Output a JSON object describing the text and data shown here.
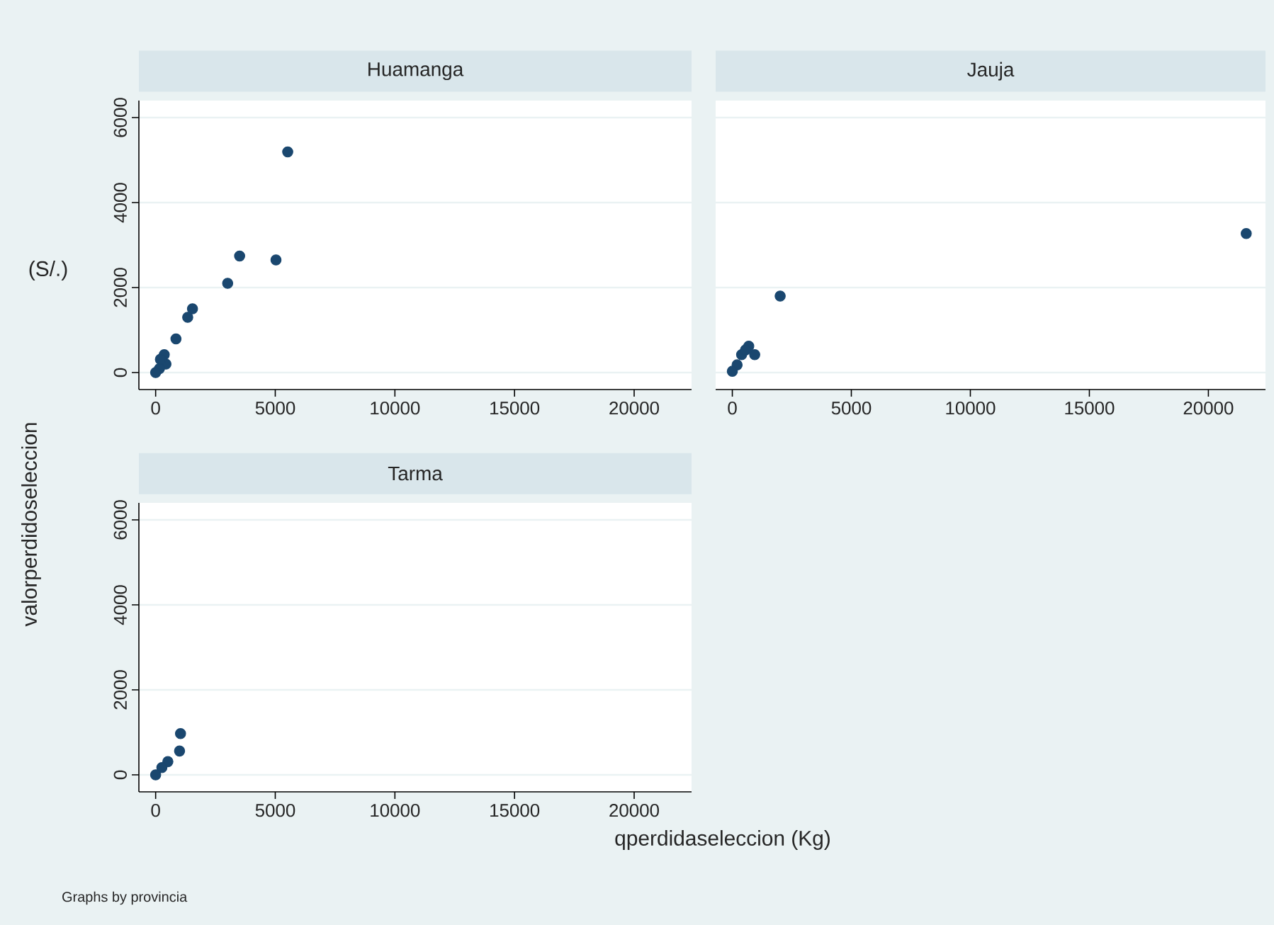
{
  "chart_data": [
    {
      "type": "scatter",
      "title": "Huamanga",
      "color": "#1a476f",
      "grid": "y",
      "xlim": [
        -700,
        22400
      ],
      "ylim": [
        -400,
        6400
      ],
      "xticks": [
        0,
        5000,
        10000,
        15000,
        20000
      ],
      "yticks": [
        0,
        2000,
        4000,
        6000
      ],
      "annotations": [
        "(S/.)"
      ],
      "x": [
        5520,
        3510,
        5030,
        3010,
        1540,
        1340,
        850,
        360,
        430,
        200,
        160,
        0
      ],
      "values": [
        5190,
        2740,
        2650,
        2100,
        1500,
        1300,
        790,
        420,
        200,
        310,
        90,
        0
      ]
    },
    {
      "type": "scatter",
      "title": "Jauja",
      "color": "#1a476f",
      "grid": "y",
      "tick_labels": "x",
      "xlim": [
        -700,
        22400
      ],
      "ylim": [
        -400,
        6400
      ],
      "xticks": [
        0,
        5000,
        10000,
        15000,
        20000
      ],
      "yticks": [
        0,
        2000,
        4000,
        6000
      ],
      "x": [
        21590,
        2010,
        690,
        940,
        390,
        550,
        200,
        0
      ],
      "values": [
        3270,
        1800,
        620,
        420,
        420,
        530,
        180,
        30
      ]
    },
    {
      "type": "scatter",
      "title": "Tarma",
      "color": "#1a476f",
      "grid": "y",
      "xlim": [
        -700,
        22400
      ],
      "ylim": [
        -400,
        6400
      ],
      "xticks": [
        0,
        5000,
        10000,
        15000,
        20000
      ],
      "yticks": [
        0,
        2000,
        4000,
        6000
      ],
      "xlabel": "qperdidaseleccion (Kg)",
      "ylabel": "valorperdidoseleccion",
      "annotations": [
        "Graphs by provincia"
      ],
      "x": [
        1040,
        1000,
        510,
        260,
        120,
        0
      ],
      "values": [
        970,
        560,
        310,
        170,
        null,
        0
      ]
    }
  ]
}
